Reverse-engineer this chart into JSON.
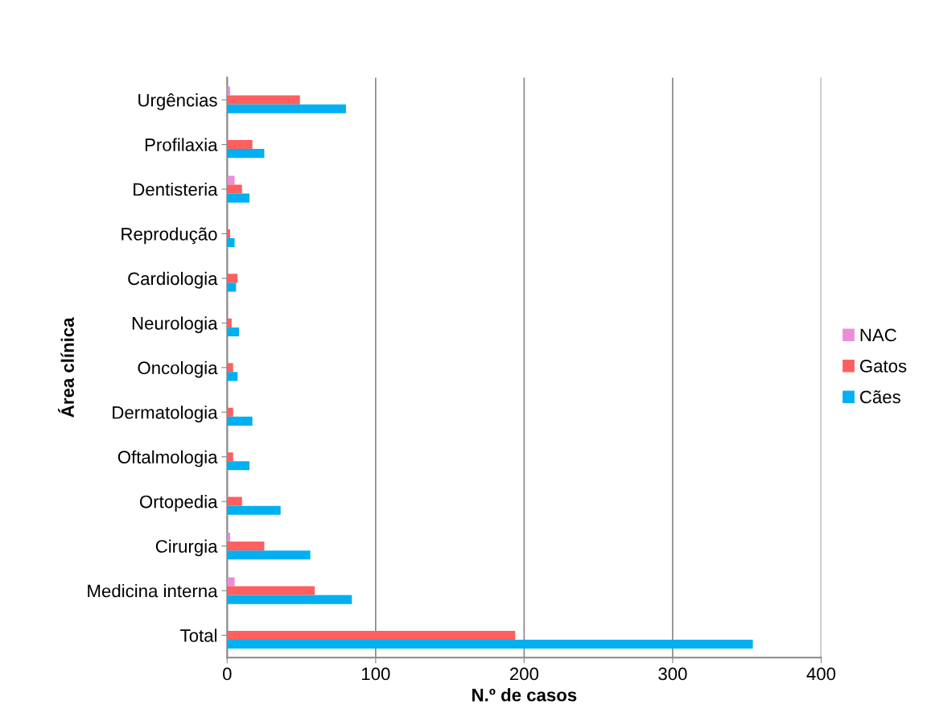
{
  "chart_data": {
    "type": "bar",
    "orientation": "horizontal",
    "xlabel": "N.º de casos",
    "ylabel": "Área clínica",
    "categories": [
      "Urgências",
      "Profilaxia",
      "Dentisteria",
      "Reprodução",
      "Cardiologia",
      "Neurologia",
      "Oncologia",
      "Dermatologia",
      "Oftalmologia",
      "Ortopedia",
      "Cirurgia",
      "Medicina interna",
      "Total"
    ],
    "series": [
      {
        "name": "NAC",
        "color": "#e88fd8",
        "values": [
          2,
          null,
          5,
          null,
          null,
          null,
          null,
          null,
          null,
          null,
          2,
          5,
          null
        ]
      },
      {
        "name": "Gatos",
        "color": "#ff5f5f",
        "values": [
          49,
          17,
          10,
          2,
          7,
          3,
          4,
          4,
          4,
          10,
          25,
          59,
          194
        ]
      },
      {
        "name": "Cães",
        "color": "#00b0f0",
        "values": [
          80,
          25,
          15,
          5,
          6,
          8,
          7,
          17,
          15,
          36,
          56,
          84,
          354
        ]
      }
    ],
    "xlim": [
      0,
      400
    ],
    "xticks": [
      0,
      100,
      200,
      300,
      400
    ],
    "grid": "x",
    "legend": "right"
  }
}
